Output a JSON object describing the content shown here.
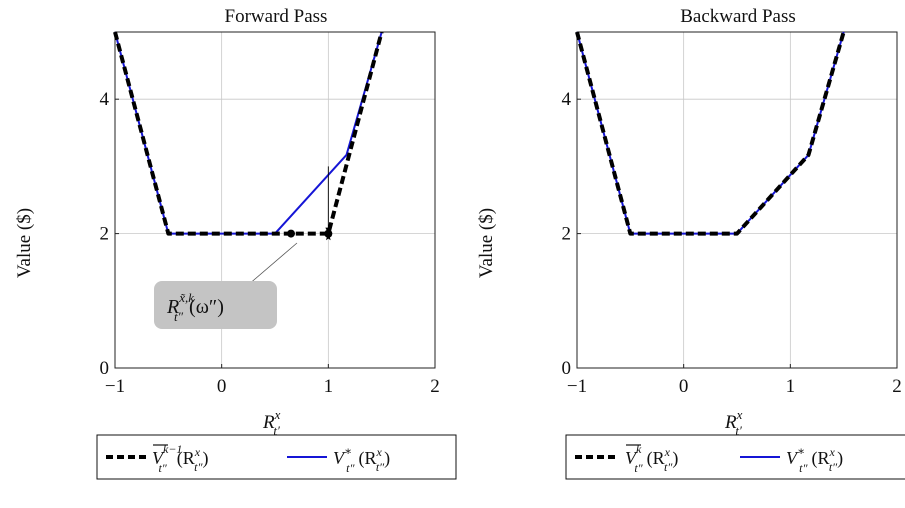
{
  "chart_data": [
    {
      "type": "line",
      "title": "Forward Pass",
      "xlabel": "R^x_{t'}",
      "ylabel": "Value ($)",
      "xlim": [
        -1,
        2
      ],
      "ylim": [
        0,
        5
      ],
      "xticks": [
        -1,
        0,
        1,
        2
      ],
      "yticks": [
        0,
        2,
        4
      ],
      "grid": true,
      "legend_position": "below",
      "series": [
        {
          "name": "V̄^{k−1}_{t''}(R^x_{t''})",
          "style": "dashed",
          "color": "#000000",
          "x": [
            -1,
            -0.5,
            0.5,
            1.0,
            1.5
          ],
          "y": [
            5,
            2,
            2,
            2,
            5
          ]
        },
        {
          "name": "V*_{t''}(R^x_{t''})",
          "style": "solid",
          "color": "#1515d6",
          "x": [
            -1,
            -0.5,
            0.5,
            1.17,
            1.5
          ],
          "y": [
            5,
            2,
            2,
            3.17,
            5
          ]
        }
      ],
      "markers": [
        {
          "shape": "dot",
          "x": 0.65,
          "y": 2
        },
        {
          "shape": "dot",
          "x": 1.0,
          "y": 2
        },
        {
          "shape": "star",
          "x": 1.0,
          "y": 1.95
        }
      ],
      "arrow": {
        "x": 1.0,
        "y_from": 3.0,
        "y_to": 2.0
      },
      "annotation": {
        "text_main": "R",
        "text_sup": "x̃,k",
        "text_sub": "t''",
        "text_tail": "(ω'')",
        "target": {
          "x": 0.65,
          "y": 2
        }
      }
    },
    {
      "type": "line",
      "title": "Backward Pass",
      "xlabel": "R^x_{t'}",
      "ylabel": "Value ($)",
      "xlim": [
        -1,
        2
      ],
      "ylim": [
        0,
        5
      ],
      "xticks": [
        -1,
        0,
        1,
        2
      ],
      "yticks": [
        0,
        2,
        4
      ],
      "grid": true,
      "legend_position": "below",
      "series": [
        {
          "name": "V̄^k_{t''}(R^x_{t''})",
          "style": "dashed",
          "color": "#000000",
          "x": [
            -1,
            -0.5,
            0.5,
            1.17,
            1.5
          ],
          "y": [
            5,
            2,
            2,
            3.17,
            5
          ]
        },
        {
          "name": "V*_{t''}(R^x_{t''})",
          "style": "solid",
          "color": "#1515d6",
          "x": [
            -1,
            -0.5,
            0.5,
            1.17,
            1.5
          ],
          "y": [
            5,
            2,
            2,
            3.17,
            5
          ]
        }
      ]
    }
  ],
  "labels": {
    "left_title": "Forward Pass",
    "right_title": "Backward Pass",
    "ylabel": "Value ($)",
    "xlabel_main": "R",
    "xlabel_sup": "x",
    "xlabel_sub": "t′",
    "left_legend_1_main": "V",
    "left_legend_1_sup": "k−1",
    "left_legend_1_sub": "t″",
    "left_legend_1_arg": "(R",
    "left_legend_1_arg_sup": "x",
    "left_legend_1_arg_sub": "t″",
    "left_legend_1_close": ")",
    "right_legend_1_main": "V",
    "right_legend_1_sup": "k",
    "right_legend_1_sub": "t″",
    "right_legend_1_arg": "(R",
    "right_legend_1_arg_sup": "x",
    "right_legend_1_arg_sub": "t″",
    "right_legend_1_close": ")",
    "legend_2_main": "V",
    "legend_2_sup": "∗",
    "legend_2_sub": "t″",
    "legend_2_arg": "(R",
    "legend_2_arg_sup": "x",
    "legend_2_arg_sub": "t″",
    "legend_2_close": ")",
    "annotation_main": "R",
    "annotation_sup": "x̃,k",
    "annotation_sub": "t″",
    "annotation_tail": "(ω″)"
  }
}
